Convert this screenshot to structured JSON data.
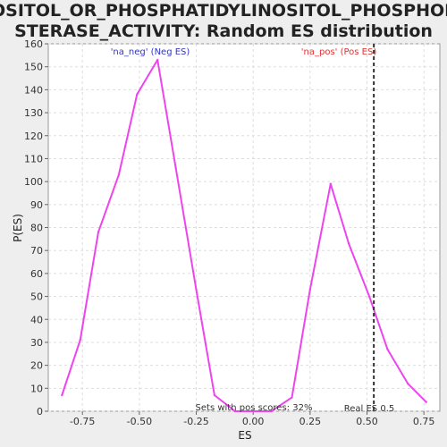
{
  "chart_data": {
    "type": "line",
    "title_line1": "INOSITOL_OR_PHOSPHATIDYLINOSITOL_PHOSPHODIE",
    "title_line2": "STERASE_ACTIVITY: Random ES distribution",
    "xlabel": "ES",
    "ylabel": "P(ES)",
    "xlim": [
      -0.9,
      0.82
    ],
    "ylim": [
      0,
      160
    ],
    "x_ticks": [
      "-0.75",
      "-0.50",
      "-0.25",
      "0.00",
      "0.25",
      "0.50",
      "0.75"
    ],
    "y_ticks": [
      "0",
      "10",
      "20",
      "30",
      "40",
      "50",
      "60",
      "70",
      "80",
      "90",
      "100",
      "110",
      "120",
      "130",
      "140",
      "150",
      "160"
    ],
    "grid": true,
    "series_color": "#ee44ee",
    "x": [
      -0.84,
      -0.76,
      -0.68,
      -0.59,
      -0.51,
      -0.42,
      -0.34,
      -0.25,
      -0.17,
      -0.08,
      0.0,
      0.08,
      0.17,
      0.25,
      0.34,
      0.42,
      0.51,
      0.59,
      0.68,
      0.76
    ],
    "values": [
      7,
      31,
      78,
      103,
      138,
      153,
      106,
      53,
      7,
      0,
      0,
      0,
      6,
      53,
      99,
      73,
      50,
      27,
      12,
      4
    ],
    "real_es": 0.53,
    "real_es_label": "Real ES 0.5",
    "annotation_neg": "'na_neg' (Neg ES)",
    "annotation_pos": "'na_pos' (Pos ES)",
    "annotation_neg_color": "#3333cc",
    "annotation_pos_color": "#dd3333",
    "footer_text": "Sets with pos scores: 32%"
  }
}
